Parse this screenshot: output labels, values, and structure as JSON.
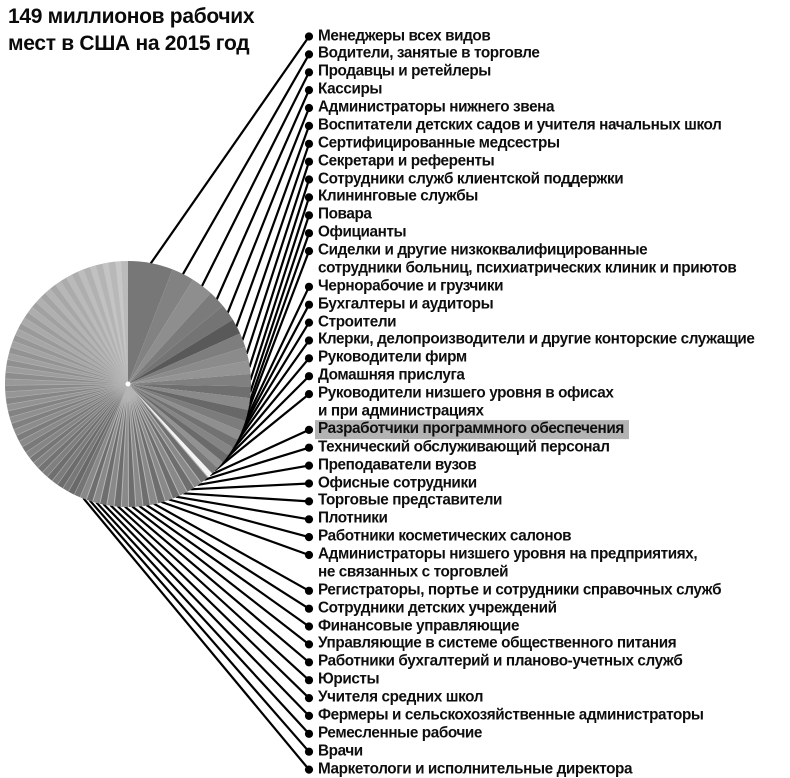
{
  "header": {
    "title": "149 миллионов рабочих мест в США на 2015 год",
    "title_line1": "149 миллионов рабочих",
    "title_line2": "мест в США на 2015 год"
  },
  "colors": {
    "background": "#ffffff",
    "text": "#0e0e0e",
    "callout_line": "#000000",
    "callout_dot": "#000000",
    "highlight_label_bg": "#b3b3b3",
    "highlighted_slice": "#f3f3f3",
    "slice_palette": [
      "#777777",
      "#828282",
      "#8e8e8e",
      "#7b7b7b",
      "#747474",
      "#595959",
      "#7e7e7e",
      "#8b8b8b",
      "#949494",
      "#808080",
      "#6f6f6f",
      "#8a8a8a",
      "#686868",
      "#7c7c7c",
      "#8f8f8f",
      "#727272",
      "#858585",
      "#6b6b6b",
      "#929292",
      "#797979",
      "#f3f3f3"
    ],
    "striped_slice_pair": [
      "#6e6e6e",
      "#898989"
    ],
    "stripe_separator": "#b5b5b5"
  },
  "chart_data": {
    "type": "pie",
    "title": "149 миллионов рабочих мест в США на 2015 год",
    "total_jobs_millions": 149,
    "start_angle_deg": 0,
    "direction": "clockwise",
    "legend_position": "right-callouts",
    "highlighted_slice_label": "Разработчики программного обеспечения",
    "slices": [
      {
        "label": "Менеджеры всех видов",
        "value_millions_est": 8.8
      },
      {
        "label": "Водители, занятые в торговле",
        "value_millions_est": 4.4
      },
      {
        "label": "Продавцы и ретейлеры",
        "value_millions_est": 4.3
      },
      {
        "label": "Кассиры",
        "value_millions_est": 3.4
      },
      {
        "label": "Администраторы нижнего звена",
        "value_millions_est": 3.3
      },
      {
        "label": "Воспитатели детских садов и учителя начальных школ",
        "value_millions_est": 3.0
      },
      {
        "label": "Сертифицированные медсестры",
        "value_millions_est": 2.8
      },
      {
        "label": "Секретари и референты",
        "value_millions_est": 2.7
      },
      {
        "label": "Сотрудники служб клиентской поддержки",
        "value_millions_est": 2.6
      },
      {
        "label": "Клининговые службы",
        "value_millions_est": 2.4
      },
      {
        "label": "Повара",
        "value_millions_est": 2.3
      },
      {
        "label": "Официанты",
        "value_millions_est": 2.3
      },
      {
        "label": "Сиделки и другие низкоквалифицированные",
        "label_line2": "сотрудники больниц, психиатрических клиник и приютов",
        "value_millions_est": 2.2
      },
      {
        "label": "Чернорабочие и грузчики",
        "value_millions_est": 2.1
      },
      {
        "label": "Бухгалтеры и аудиторы",
        "value_millions_est": 1.8
      },
      {
        "label": "Строители",
        "value_millions_est": 1.8
      },
      {
        "label": "Клерки, делопроизводители и другие конторские служащие",
        "value_millions_est": 1.7
      },
      {
        "label": "Руководители фирм",
        "value_millions_est": 1.7
      },
      {
        "label": "Домашняя прислуга",
        "value_millions_est": 1.5
      },
      {
        "label": "Руководители низшего уровня в офисах",
        "label_line2": "и при администрациях",
        "value_millions_est": 1.5
      },
      {
        "label": "Разработчики программного обеспечения",
        "value_millions_est": 1.1,
        "highlighted": true
      },
      {
        "label": "Технический обслуживающий персонал",
        "value_millions_est": 1.7
      },
      {
        "label": "Преподаватели вузов",
        "value_millions_est": 1.6
      },
      {
        "label": "Офисные сотрудники",
        "value_millions_est": 1.6
      },
      {
        "label": "Торговые представители",
        "value_millions_est": 1.6
      },
      {
        "label": "Плотники",
        "value_millions_est": 1.5
      },
      {
        "label": "Работники косметических салонов",
        "value_millions_est": 1.5
      },
      {
        "label": "Администраторы низшего уровня на предприятиях,",
        "label_line2": "не связанных с торговлей",
        "value_millions_est": 1.5
      },
      {
        "label": "Регистраторы, портье и сотрудники справочных служб",
        "value_millions_est": 1.5
      },
      {
        "label": "Сотрудники детских учреждений",
        "value_millions_est": 1.4
      },
      {
        "label": "Финансовые управляющие",
        "value_millions_est": 1.4
      },
      {
        "label": "Управляющие в системе общественного питания",
        "value_millions_est": 1.4
      },
      {
        "label": "Работники бухгалтерий и планово-учетных служб",
        "value_millions_est": 1.4
      },
      {
        "label": "Юристы",
        "value_millions_est": 1.4
      },
      {
        "label": "Учителя средних школ",
        "value_millions_est": 1.4
      },
      {
        "label": "Фермеры и сельскохозяйственные администраторы",
        "value_millions_est": 1.4
      },
      {
        "label": "Ремесленные рабочие",
        "value_millions_est": 1.4
      },
      {
        "label": "Врачи",
        "value_millions_est": 1.3
      },
      {
        "label": "Маркетологи и исполнительные директора",
        "value_millions_est": 1.3
      }
    ],
    "unlabeled_remainder_millions_est": 65.0
  }
}
